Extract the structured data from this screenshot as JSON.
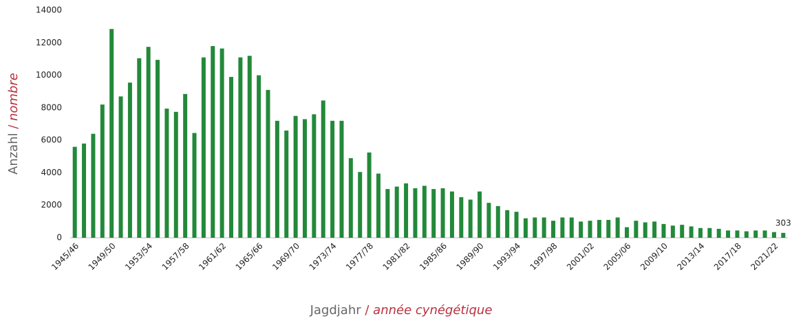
{
  "chart_data": {
    "type": "bar",
    "x_label": {
      "de": "Jagdjahr",
      "separator": "/",
      "fr": "année cynégétique"
    },
    "y_label": {
      "de": "Anzahl",
      "separator": "/",
      "fr": "nombre"
    },
    "categories": [
      "1945/46",
      null,
      null,
      null,
      "1949/50",
      null,
      null,
      null,
      "1953/54",
      null,
      null,
      null,
      "1957/58",
      null,
      null,
      null,
      "1961/62",
      null,
      null,
      null,
      "1965/66",
      null,
      null,
      null,
      "1969/70",
      null,
      null,
      null,
      "1973/74",
      null,
      null,
      null,
      "1977/78",
      null,
      null,
      null,
      "1981/82",
      null,
      null,
      null,
      "1985/86",
      null,
      null,
      null,
      "1989/90",
      null,
      null,
      null,
      "1993/94",
      null,
      null,
      null,
      "1997/98",
      null,
      null,
      null,
      "2001/02",
      null,
      null,
      null,
      "2005/06",
      null,
      null,
      null,
      "2009/10",
      null,
      null,
      null,
      "2013/14",
      null,
      null,
      null,
      "2017/18",
      null,
      null,
      null,
      "2021/22",
      null
    ],
    "values": [
      5600,
      5800,
      6400,
      8200,
      12850,
      8700,
      9550,
      11050,
      11750,
      10950,
      7950,
      7750,
      8850,
      6450,
      11100,
      11800,
      11650,
      9900,
      11100,
      11200,
      10000,
      9100,
      7200,
      6600,
      7500,
      7300,
      7600,
      8450,
      7200,
      7200,
      4900,
      4050,
      5250,
      3950,
      3000,
      3150,
      3350,
      3050,
      3200,
      3000,
      3050,
      2850,
      2500,
      2350,
      2850,
      2150,
      1950,
      1700,
      1600,
      1200,
      1250,
      1250,
      1050,
      1250,
      1250,
      1000,
      1050,
      1100,
      1100,
      1250,
      650,
      1050,
      950,
      1000,
      850,
      750,
      800,
      700,
      600,
      600,
      550,
      450,
      450,
      400,
      450,
      450,
      350,
      303
    ],
    "data_labels": "last",
    "color": "#23893a",
    "ylim": [
      0,
      14000
    ],
    "yticks": [
      0,
      2000,
      4000,
      6000,
      8000,
      10000,
      12000,
      14000
    ],
    "grid": false
  }
}
